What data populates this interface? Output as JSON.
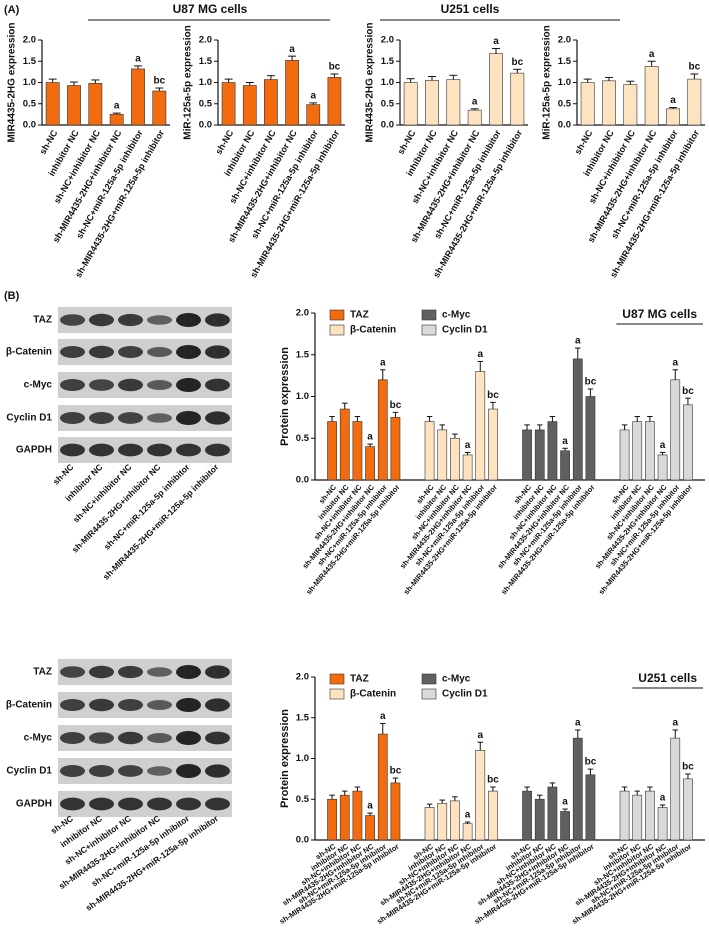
{
  "panel_a": {
    "label": "(A)",
    "groups": [
      "U87 MG cells",
      "U251 cells"
    ]
  },
  "panel_b": {
    "label": "(B)",
    "blots": [
      {
        "proteins": [
          "TAZ",
          "β-Catenin",
          "c-Myc",
          "Cyclin D1",
          "GAPDH"
        ],
        "lanes": [
          "sh-NC",
          "inhibitor NC",
          "sh-NC+inhibitor NC",
          "sh-MIR4435-2HG+inhibitor NC",
          "sh-NC+miR-125a-5p inhibitor",
          "sh-MIR4435-2HG+miR-125a-5p inhibitor"
        ]
      },
      {
        "proteins": [
          "TAZ",
          "β-Catenin",
          "c-Myc",
          "Cyclin D1",
          "GAPDH"
        ],
        "lanes": [
          "sh-NC",
          "inhibitor NC",
          "sh-NC+inhibitor NC",
          "sh-MIR4435-2HG+inhibitor NC",
          "sh-NC+miR-125a-5p inhibitor",
          "sh-MIR4435-2HG+miR-125a-5p inhibitor"
        ]
      }
    ]
  },
  "chart_data": [
    {
      "type": "bar",
      "y_label": "MIR4435-2HG expression",
      "categories": [
        "sh-NC",
        "inhibitor NC",
        "sh-NC+inhibitor NC",
        "sh-MIR4435-2HG+inhibitor NC",
        "sh-NC+miR-125a-5p inhibitor",
        "sh-MIR4435-2HG+miR-125a-5p inhibitor"
      ],
      "values": [
        1.0,
        0.93,
        0.98,
        0.25,
        1.32,
        0.8
      ],
      "errors": [
        0.08,
        0.08,
        0.08,
        0.03,
        0.07,
        0.07
      ],
      "annotations": [
        {
          "index": 3,
          "text": "a"
        },
        {
          "index": 4,
          "text": "a"
        },
        {
          "index": 5,
          "text": "bc"
        }
      ],
      "color": "#f26b0f",
      "ylim": [
        0,
        2
      ],
      "yticks": [
        {
          "value": 0,
          "label": "0.0"
        },
        0.5,
        {
          "value": 1,
          "label": "1.0"
        },
        1.5,
        {
          "value": 2,
          "label": "2.0"
        }
      ]
    },
    {
      "type": "bar",
      "y_label": "MiR-125a-5p expression",
      "categories": [
        "sh-NC",
        "inhibitor NC",
        "sh-NC+inhibitor NC",
        "sh-MIR4435-2HG+inhibitor NC",
        "sh-NC+miR-125a-5p inhibitor",
        "sh-MIR4435-2HG+miR-125a-5p inhibitor"
      ],
      "values": [
        1.0,
        0.93,
        1.07,
        1.52,
        0.48,
        1.12
      ],
      "errors": [
        0.08,
        0.07,
        0.09,
        0.1,
        0.04,
        0.08
      ],
      "annotations": [
        {
          "index": 3,
          "text": "a"
        },
        {
          "index": 4,
          "text": "a"
        },
        {
          "index": 5,
          "text": "bc"
        }
      ],
      "color": "#f26b0f",
      "ylim": [
        0,
        2
      ],
      "yticks": [
        {
          "value": 0,
          "label": "0.0"
        },
        0.5,
        {
          "value": 1,
          "label": "1.0"
        },
        1.5,
        {
          "value": 2,
          "label": "2.0"
        }
      ]
    },
    {
      "type": "bar",
      "y_label": "MIR4435-2HG expression",
      "categories": [
        "sh-NC",
        "inhibitor NC",
        "sh-NC+inhibitor NC",
        "sh-MIR4435-2HG+inhibitor NC",
        "sh-NC+miR-125a-5p inhibitor",
        "sh-MIR4435-2HG+miR-125a-5p inhibitor"
      ],
      "values": [
        1.0,
        1.05,
        1.07,
        0.35,
        1.68,
        1.22
      ],
      "errors": [
        0.09,
        0.09,
        0.1,
        0.03,
        0.12,
        0.09
      ],
      "annotations": [
        {
          "index": 3,
          "text": "a"
        },
        {
          "index": 4,
          "text": "a"
        },
        {
          "index": 5,
          "text": "bc"
        }
      ],
      "color": "#fde3c0",
      "ylim": [
        0,
        2
      ],
      "yticks": [
        {
          "value": 0,
          "label": "0.0"
        },
        0.5,
        {
          "value": 1,
          "label": "1.0"
        },
        1.5,
        {
          "value": 2,
          "label": "2.0"
        }
      ]
    },
    {
      "type": "bar",
      "y_label": "MiR-125a-5p expression",
      "categories": [
        "sh-NC",
        "inhibitor NC",
        "sh-NC+inhibitor NC",
        "sh-MIR4435-2HG+inhibitor NC",
        "sh-NC+miR-125a-5p inhibitor",
        "sh-MIR4435-2HG+miR-125a-5p inhibitor"
      ],
      "values": [
        1.0,
        1.04,
        0.95,
        1.38,
        0.38,
        1.08
      ],
      "errors": [
        0.08,
        0.08,
        0.08,
        0.12,
        0.03,
        0.12
      ],
      "annotations": [
        {
          "index": 3,
          "text": "a"
        },
        {
          "index": 4,
          "text": "a"
        },
        {
          "index": 5,
          "text": "bc"
        }
      ],
      "color": "#fde3c0",
      "ylim": [
        0,
        2
      ],
      "yticks": [
        {
          "value": 0,
          "label": "0.0"
        },
        0.5,
        {
          "value": 1,
          "label": "1.0"
        },
        1.5,
        {
          "value": 2,
          "label": "2.0"
        }
      ]
    },
    {
      "type": "grouped_bar",
      "title": "U87 MG cells",
      "y_label": "Protein expression",
      "categories": [
        "sh-NC",
        "inhibitor NC",
        "sh-NC+inhibitor NC",
        "sh-MIR4435-2HG+inhibitor NC",
        "sh-NC+miR-125a-5p inhibitor",
        "sh-MIR4435-2HG+miR-125a-5p inhibitor"
      ],
      "series": [
        {
          "name": "TAZ",
          "color": "#f26b0f",
          "values": [
            0.7,
            0.85,
            0.7,
            0.4,
            1.2,
            0.75
          ],
          "errors": [
            0.06,
            0.07,
            0.06,
            0.03,
            0.12,
            0.06
          ],
          "annotations": [
            {
              "index": 3,
              "text": "a"
            },
            {
              "index": 4,
              "text": "a"
            },
            {
              "index": 5,
              "text": "bc"
            }
          ]
        },
        {
          "name": "β-Catenin",
          "color": "#fde3c0",
          "values": [
            0.7,
            0.6,
            0.5,
            0.3,
            1.3,
            0.85
          ],
          "errors": [
            0.06,
            0.06,
            0.05,
            0.03,
            0.12,
            0.08
          ],
          "annotations": [
            {
              "index": 3,
              "text": "a"
            },
            {
              "index": 4,
              "text": "a"
            },
            {
              "index": 5,
              "text": "bc"
            }
          ]
        },
        {
          "name": "c-Myc",
          "color": "#606060",
          "values": [
            0.6,
            0.6,
            0.7,
            0.35,
            1.45,
            1.0
          ],
          "errors": [
            0.06,
            0.06,
            0.06,
            0.03,
            0.13,
            0.09
          ],
          "annotations": [
            {
              "index": 3,
              "text": "a"
            },
            {
              "index": 4,
              "text": "a"
            },
            {
              "index": 5,
              "text": "bc"
            }
          ]
        },
        {
          "name": "Cyclin D1",
          "color": "#d9d9d9",
          "values": [
            0.6,
            0.7,
            0.7,
            0.3,
            1.2,
            0.9
          ],
          "errors": [
            0.06,
            0.06,
            0.06,
            0.03,
            0.12,
            0.08
          ],
          "annotations": [
            {
              "index": 3,
              "text": "a"
            },
            {
              "index": 4,
              "text": "a"
            },
            {
              "index": 5,
              "text": "bc"
            }
          ]
        }
      ],
      "ylim": [
        0,
        2
      ],
      "yticks": [
        {
          "value": 0,
          "label": "0.0"
        },
        0.5,
        {
          "value": 1,
          "label": "1.0"
        },
        1.5,
        {
          "value": 2,
          "label": "2.0"
        }
      ]
    },
    {
      "type": "grouped_bar",
      "title": "U251 cells",
      "y_label": "Protein expression",
      "categories": [
        "sh-NC",
        "inhibitor NC",
        "sh-NC+inhibitor NC",
        "sh-MIR4435-2HG+inhibitor NC",
        "sh-NC+miR-125a-5p inhibitor",
        "sh-MIR4435-2HG+miR-125a-5p inhibitor"
      ],
      "series": [
        {
          "name": "TAZ",
          "color": "#f26b0f",
          "values": [
            0.5,
            0.55,
            0.6,
            0.3,
            1.3,
            0.7
          ],
          "errors": [
            0.05,
            0.05,
            0.05,
            0.03,
            0.13,
            0.06
          ],
          "annotations": [
            {
              "index": 3,
              "text": "a"
            },
            {
              "index": 4,
              "text": "a"
            },
            {
              "index": 5,
              "text": "bc"
            }
          ]
        },
        {
          "name": "β-Catenin",
          "color": "#fde3c0",
          "values": [
            0.4,
            0.45,
            0.48,
            0.2,
            1.1,
            0.6
          ],
          "errors": [
            0.04,
            0.04,
            0.05,
            0.02,
            0.1,
            0.05
          ],
          "annotations": [
            {
              "index": 3,
              "text": "a"
            },
            {
              "index": 4,
              "text": "a"
            },
            {
              "index": 5,
              "text": "bc"
            }
          ]
        },
        {
          "name": "c-Myc",
          "color": "#606060",
          "values": [
            0.6,
            0.5,
            0.65,
            0.35,
            1.25,
            0.8
          ],
          "errors": [
            0.05,
            0.05,
            0.05,
            0.03,
            0.1,
            0.07
          ],
          "annotations": [
            {
              "index": 3,
              "text": "a"
            },
            {
              "index": 4,
              "text": "a"
            },
            {
              "index": 5,
              "text": "bc"
            }
          ]
        },
        {
          "name": "Cyclin D1",
          "color": "#d9d9d9",
          "values": [
            0.6,
            0.55,
            0.6,
            0.4,
            1.25,
            0.75
          ],
          "errors": [
            0.05,
            0.05,
            0.05,
            0.03,
            0.1,
            0.06
          ],
          "annotations": [
            {
              "index": 3,
              "text": "a"
            },
            {
              "index": 4,
              "text": "a"
            },
            {
              "index": 5,
              "text": "bc"
            }
          ]
        }
      ],
      "ylim": [
        0,
        2
      ],
      "yticks": [
        {
          "value": 0,
          "label": "0.0"
        },
        0.5,
        {
          "value": 1,
          "label": "1.0"
        },
        1.5,
        {
          "value": 2,
          "label": "2.0"
        }
      ]
    }
  ]
}
